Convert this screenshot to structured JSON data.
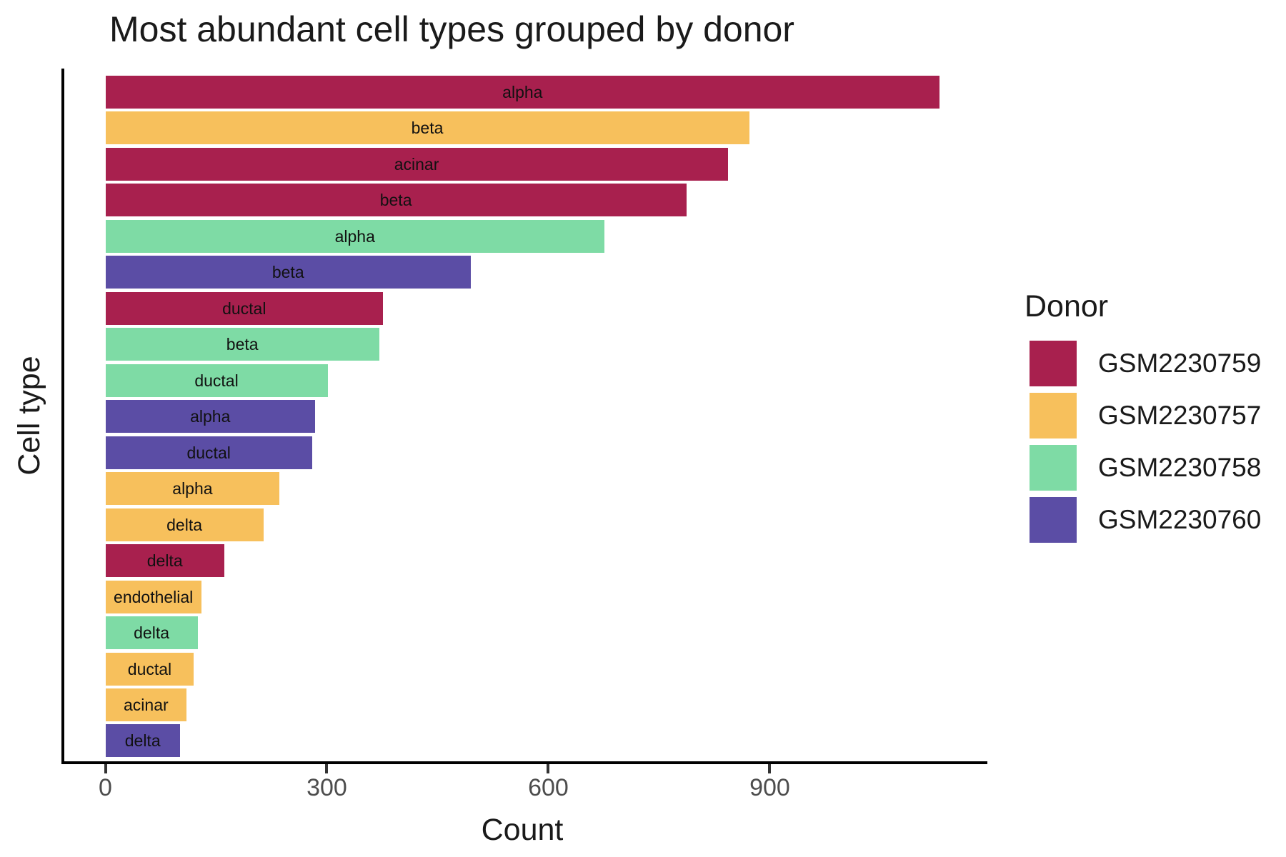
{
  "title": "Most abundant cell types grouped by donor",
  "x_axis": {
    "title": "Count",
    "tick_values": [
      0,
      300,
      600,
      900
    ]
  },
  "y_axis": {
    "title": "Cell type"
  },
  "legend": {
    "title": "Donor",
    "items": [
      {
        "label": "GSM2230759",
        "color": "#A8204E"
      },
      {
        "label": "GSM2230757",
        "color": "#F7C05C"
      },
      {
        "label": "GSM2230758",
        "color": "#7EDBA5"
      },
      {
        "label": "GSM2230760",
        "color": "#5B4DA5"
      }
    ]
  },
  "palette": {
    "GSM2230759": "#A8204E",
    "GSM2230757": "#F7C05C",
    "GSM2230758": "#7EDBA5",
    "GSM2230760": "#5B4DA5"
  },
  "chart_data": {
    "type": "bar",
    "orientation": "horizontal",
    "title": "Most abundant cell types grouped by donor",
    "xlabel": "Count",
    "ylabel": "Cell type",
    "xlim": [
      0,
      1175
    ],
    "x_ticks": [
      0,
      300,
      600,
      900
    ],
    "grid": false,
    "legend_position": "right",
    "bar_labels": "cell type name centered inside each bar",
    "sort": "descending by count",
    "bars": [
      {
        "cell_type": "alpha",
        "donor": "GSM2230759",
        "count": 1130
      },
      {
        "cell_type": "beta",
        "donor": "GSM2230757",
        "count": 872
      },
      {
        "cell_type": "acinar",
        "donor": "GSM2230759",
        "count": 843
      },
      {
        "cell_type": "beta",
        "donor": "GSM2230759",
        "count": 787
      },
      {
        "cell_type": "alpha",
        "donor": "GSM2230758",
        "count": 676
      },
      {
        "cell_type": "beta",
        "donor": "GSM2230760",
        "count": 495
      },
      {
        "cell_type": "ductal",
        "donor": "GSM2230759",
        "count": 376
      },
      {
        "cell_type": "beta",
        "donor": "GSM2230758",
        "count": 371
      },
      {
        "cell_type": "ductal",
        "donor": "GSM2230758",
        "count": 301
      },
      {
        "cell_type": "alpha",
        "donor": "GSM2230760",
        "count": 284
      },
      {
        "cell_type": "ductal",
        "donor": "GSM2230760",
        "count": 280
      },
      {
        "cell_type": "alpha",
        "donor": "GSM2230757",
        "count": 236
      },
      {
        "cell_type": "delta",
        "donor": "GSM2230757",
        "count": 214
      },
      {
        "cell_type": "delta",
        "donor": "GSM2230759",
        "count": 161
      },
      {
        "cell_type": "endothelial",
        "donor": "GSM2230757",
        "count": 130
      },
      {
        "cell_type": "delta",
        "donor": "GSM2230758",
        "count": 125
      },
      {
        "cell_type": "ductal",
        "donor": "GSM2230757",
        "count": 120
      },
      {
        "cell_type": "acinar",
        "donor": "GSM2230757",
        "count": 110
      },
      {
        "cell_type": "delta",
        "donor": "GSM2230760",
        "count": 101
      }
    ]
  }
}
